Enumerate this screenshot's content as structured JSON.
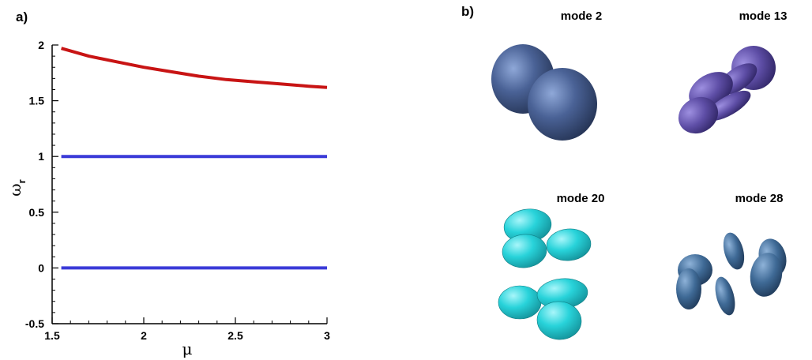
{
  "panel_a_label": "a)",
  "panel_b_label": "b)",
  "chart_data": {
    "type": "line",
    "xlabel": "μ",
    "ylabel": "ω",
    "ylabel_subscript": "r",
    "xlim": [
      1.5,
      3.0
    ],
    "ylim": [
      -0.5,
      2.0
    ],
    "xticks": [
      1.5,
      2,
      2.5,
      3
    ],
    "xtick_labels": [
      "1.5",
      "2",
      "2.5",
      "3"
    ],
    "yticks": [
      -0.5,
      0,
      0.5,
      1,
      1.5,
      2
    ],
    "ytick_labels": [
      "-0.5",
      "0",
      "0.5",
      "1",
      "1.5",
      "2"
    ],
    "grid": false,
    "series": [
      {
        "color": "#c81414",
        "x": [
          1.55,
          1.7,
          1.85,
          2.0,
          2.15,
          2.3,
          2.45,
          2.6,
          2.75,
          2.9,
          3.0
        ],
        "y": [
          1.97,
          1.9,
          1.85,
          1.8,
          1.76,
          1.72,
          1.69,
          1.67,
          1.65,
          1.63,
          1.62
        ]
      },
      {
        "color": "#3a3ad8",
        "x": [
          1.55,
          3.0
        ],
        "y": [
          1.0,
          1.0
        ]
      },
      {
        "color": "#3a3ad8",
        "x": [
          1.55,
          3.0
        ],
        "y": [
          0.0,
          0.0
        ]
      }
    ]
  },
  "modes": [
    {
      "label": "mode 2",
      "color": "#3f5a8c"
    },
    {
      "label": "mode 13",
      "color": "#5d4e9e"
    },
    {
      "label": "mode 20",
      "color": "#22cfd6"
    },
    {
      "label": "mode 28",
      "color": "#3d6690"
    }
  ]
}
